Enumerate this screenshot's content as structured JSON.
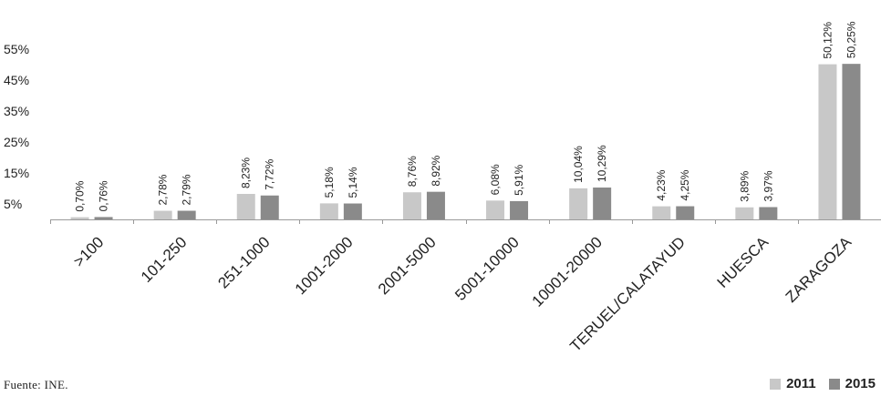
{
  "chart_data": {
    "type": "bar",
    "categories": [
      ">100",
      "101-250",
      "251-1000",
      "1001-2000",
      "2001-5000",
      "5001-10000",
      "10001-20000",
      "TERUEL/CALATAYUD",
      "HUESCA",
      "ZARAGOZA"
    ],
    "series": [
      {
        "name": "2011",
        "color": "#c8c8c8",
        "values": [
          0.7,
          2.78,
          8.23,
          5.18,
          8.76,
          6.08,
          10.04,
          4.23,
          3.89,
          50.12
        ]
      },
      {
        "name": "2015",
        "color": "#8a8a8a",
        "values": [
          0.76,
          2.79,
          7.72,
          5.14,
          8.92,
          5.91,
          10.29,
          4.25,
          3.97,
          50.25
        ]
      }
    ],
    "data_labels": [
      [
        "0,70%",
        "2,78%",
        "8,23%",
        "5,18%",
        "8,76%",
        "6,08%",
        "10,04%",
        "4,23%",
        "3,89%",
        "50,12%"
      ],
      [
        "0,76%",
        "2,79%",
        "7,72%",
        "5,14%",
        "8,92%",
        "5,91%",
        "10,29%",
        "4,25%",
        "3,97%",
        "50,25%"
      ]
    ],
    "yticks": [
      5,
      15,
      25,
      35,
      45,
      55
    ],
    "ytick_labels": [
      "5%",
      "15%",
      "25%",
      "35%",
      "45%",
      "55%"
    ],
    "ylim": [
      0,
      58
    ],
    "legend_position": "bottom-right",
    "grid": false
  },
  "source": "Fuente: INE.",
  "legend": {
    "items": [
      {
        "label": "2011",
        "color": "#c8c8c8"
      },
      {
        "label": "2015",
        "color": "#8a8a8a"
      }
    ]
  }
}
